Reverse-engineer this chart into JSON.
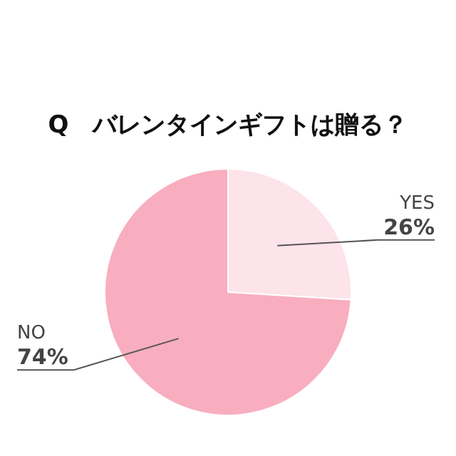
{
  "chart_data": {
    "type": "pie",
    "title": "Q　バレンタインギフトは贈る？",
    "categories": [
      "YES",
      "NO"
    ],
    "values": [
      26,
      74
    ],
    "value_labels": [
      "26%",
      "74%"
    ],
    "colors": [
      "#fde3ea",
      "#f8aebf"
    ],
    "legend": false
  }
}
